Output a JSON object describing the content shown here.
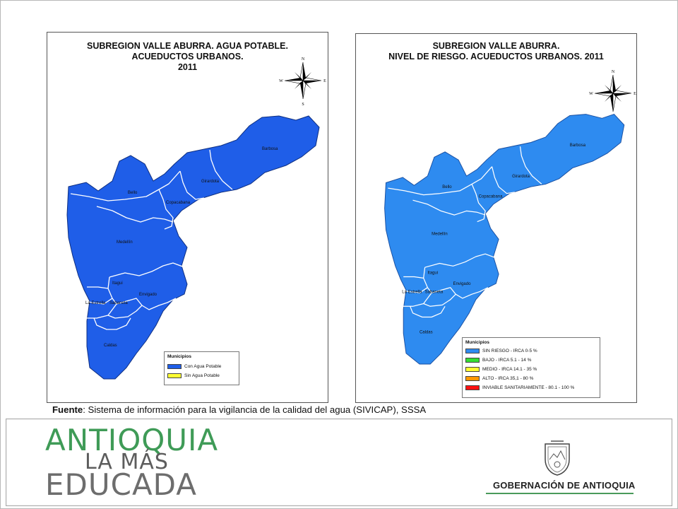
{
  "maps": [
    {
      "title_lines": [
        "SUBREGION VALLE ABURRA. AGUA POTABLE.",
        "ACUEDUCTOS URBANOS.",
        "2011"
      ],
      "fill_color": "#1f5ee8",
      "compass": {
        "n": "N",
        "s": "S",
        "e": "E",
        "w": "W"
      },
      "municipalities": [
        "Barbosa",
        "Girardota",
        "Bello",
        "Copacabana",
        "Medellín",
        "Itagui",
        "Envigado",
        "La Estrella",
        "Sabaneta",
        "Caldas"
      ],
      "legend": {
        "title": "Municipios",
        "items": [
          {
            "label": "Con Agua Potable",
            "color": "#1f5ee8"
          },
          {
            "label": "Sin Agua Potable",
            "color": "#ffff33"
          }
        ]
      }
    },
    {
      "title_lines": [
        "SUBREGION VALLE ABURRA.",
        "NIVEL DE RIESGO. ACUEDUCTOS URBANOS. 2011"
      ],
      "fill_color": "#2e8bf0",
      "compass": {
        "n": "N",
        "s": "S",
        "e": "E",
        "w": "W"
      },
      "municipalities": [
        "Barbosa",
        "Girardota",
        "Bello",
        "Copacabana",
        "Medellín",
        "Itagui",
        "Envigado",
        "La Estrella",
        "Sabaneta",
        "Caldas"
      ],
      "legend": {
        "title": "Municipios",
        "items": [
          {
            "label": "SIN RIESGO - IRCA 0-5 %",
            "color": "#2e8bf0"
          },
          {
            "label": "BAJO - IRCA 5.1 - 14 %",
            "color": "#33dd33"
          },
          {
            "label": "MEDIO - IRCA 14.1 - 35 %",
            "color": "#ffff33"
          },
          {
            "label": "ALTO - IRCA 35,1 - 80 %",
            "color": "#ff9900"
          },
          {
            "label": "INVIABLE SANITARIAMENTE - 80.1 - 100 %",
            "color": "#ff1111"
          }
        ]
      }
    }
  ],
  "source": {
    "label": "Fuente",
    "text": ":  Sistema de información para la vigilancia de la calidad del agua (SIVICAP), SSSA"
  },
  "footer": {
    "brand_line1": "ANTIOQUIA",
    "brand_line2": "LA MÁS",
    "brand_line3": "EDUCADA",
    "government": "GOBERNACIÓN DE ANTIOQUIA",
    "brand_color": "#3f9b57"
  }
}
